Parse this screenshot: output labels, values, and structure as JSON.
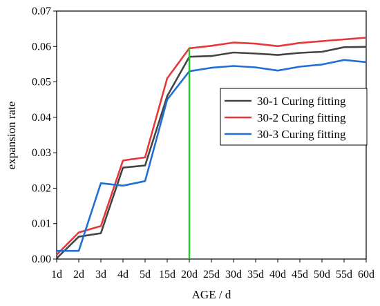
{
  "chart_data": {
    "type": "line",
    "categories": [
      "1d",
      "2d",
      "3d",
      "4d",
      "5d",
      "15d",
      "20d",
      "25d",
      "30d",
      "35d",
      "40d",
      "45d",
      "50d",
      "55d",
      "60d"
    ],
    "xlabel": "AGE  / d",
    "ylabel": "expansion  rate",
    "ylim": [
      0,
      0.07
    ],
    "yticks": [
      "0.00",
      "0.01",
      "0.02",
      "0.03",
      "0.04",
      "0.05",
      "0.06",
      "0.07"
    ],
    "grid": false,
    "legend_position": "right-middle",
    "series": [
      {
        "name": "30-1 Curing fitting",
        "color": "#444444",
        "values": [
          0.0002,
          0.0063,
          0.0073,
          0.0258,
          0.0264,
          0.046,
          0.0571,
          0.0573,
          0.0583,
          0.058,
          0.0576,
          0.0582,
          0.0585,
          0.0598,
          0.0599
        ]
      },
      {
        "name": "30-2 Curing fitting",
        "color": "#e8373a",
        "values": [
          0.0012,
          0.0075,
          0.0093,
          0.0278,
          0.0287,
          0.051,
          0.0595,
          0.0602,
          0.0611,
          0.0608,
          0.0601,
          0.061,
          0.0615,
          0.062,
          0.0625
        ]
      },
      {
        "name": "30-3 Curing fitting",
        "color": "#1f6fd6",
        "values": [
          0.0023,
          0.0023,
          0.0214,
          0.0207,
          0.022,
          0.045,
          0.053,
          0.054,
          0.0545,
          0.0541,
          0.0532,
          0.0543,
          0.0549,
          0.0562,
          0.0556
        ]
      }
    ],
    "marker_line": {
      "category": "20d",
      "color": "#22cc22"
    }
  }
}
